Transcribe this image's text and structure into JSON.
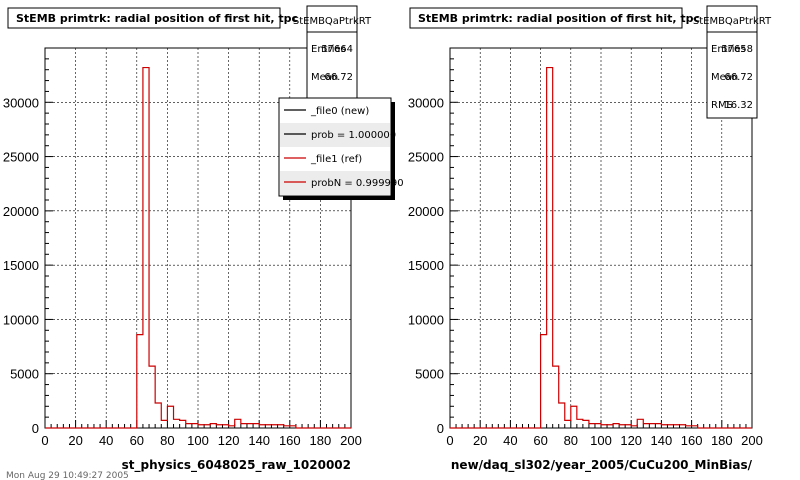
{
  "chart_data": [
    {
      "type": "histogram",
      "title": "StEMB primtrk: radial position of first hit, tpc",
      "xlabel": "st_physics_6048025_raw_1020002",
      "xlim": [
        0,
        200
      ],
      "ylim": [
        0,
        35000
      ],
      "x_ticks": [
        0,
        20,
        40,
        60,
        80,
        100,
        120,
        140,
        160,
        180,
        200
      ],
      "y_ticks": [
        0,
        5000,
        10000,
        15000,
        20000,
        25000,
        30000
      ],
      "grid": true,
      "stats": {
        "name": "StEMBQaPtrkRT",
        "entries_label": "Entries",
        "entries": "57664",
        "mean_label": "Mean",
        "mean": "66.72"
      },
      "legend": {
        "placement": "top-right",
        "entries": [
          {
            "label": "_file0 (new)",
            "color": "#000000"
          },
          {
            "label": "prob = 1.000000",
            "color": "#000000"
          },
          {
            "label": "_file1 (ref)",
            "color": "#cc0000"
          },
          {
            "label": "probN = 0.999990",
            "color": "#cc0000"
          }
        ]
      },
      "bin_width": 4,
      "bin_edges_start": 0,
      "series": [
        {
          "color": "#cc0000",
          "values": [
            0,
            0,
            0,
            0,
            0,
            0,
            0,
            0,
            0,
            0,
            0,
            0,
            0,
            0,
            0,
            8600,
            33200,
            5700,
            2300,
            700,
            2000,
            800,
            700,
            400,
            400,
            300,
            300,
            400,
            300,
            300,
            200,
            800,
            400,
            400,
            400,
            300,
            300,
            300,
            300,
            200,
            200,
            0,
            0,
            0,
            0,
            0,
            0,
            0,
            0,
            0
          ]
        }
      ]
    },
    {
      "type": "histogram",
      "title": "StEMB primtrk: radial position of first hit, tpc",
      "xlabel": "new/daq_sl302/year_2005/CuCu200_MinBias/",
      "xlim": [
        0,
        200
      ],
      "ylim": [
        0,
        35000
      ],
      "x_ticks": [
        0,
        20,
        40,
        60,
        80,
        100,
        120,
        140,
        160,
        180,
        200
      ],
      "y_ticks": [
        0,
        5000,
        10000,
        15000,
        20000,
        25000,
        30000
      ],
      "grid": true,
      "stats": {
        "name": "StEMBQaPtrkRT",
        "entries_label": "Entries",
        "entries": "57658",
        "mean_label": "Mean",
        "mean": "66.72",
        "rms_label": "RMS",
        "rms": "16.32"
      },
      "bin_width": 4,
      "bin_edges_start": 0,
      "series": [
        {
          "color": "#cc0000",
          "values": [
            0,
            0,
            0,
            0,
            0,
            0,
            0,
            0,
            0,
            0,
            0,
            0,
            0,
            0,
            0,
            8600,
            33200,
            5700,
            2300,
            700,
            2000,
            800,
            700,
            400,
            400,
            300,
            300,
            400,
            300,
            300,
            200,
            800,
            400,
            400,
            400,
            300,
            300,
            300,
            300,
            200,
            200,
            0,
            0,
            0,
            0,
            0,
            0,
            0,
            0,
            0
          ]
        }
      ]
    }
  ],
  "footer": "Mon Aug 29 10:49:27 2005"
}
